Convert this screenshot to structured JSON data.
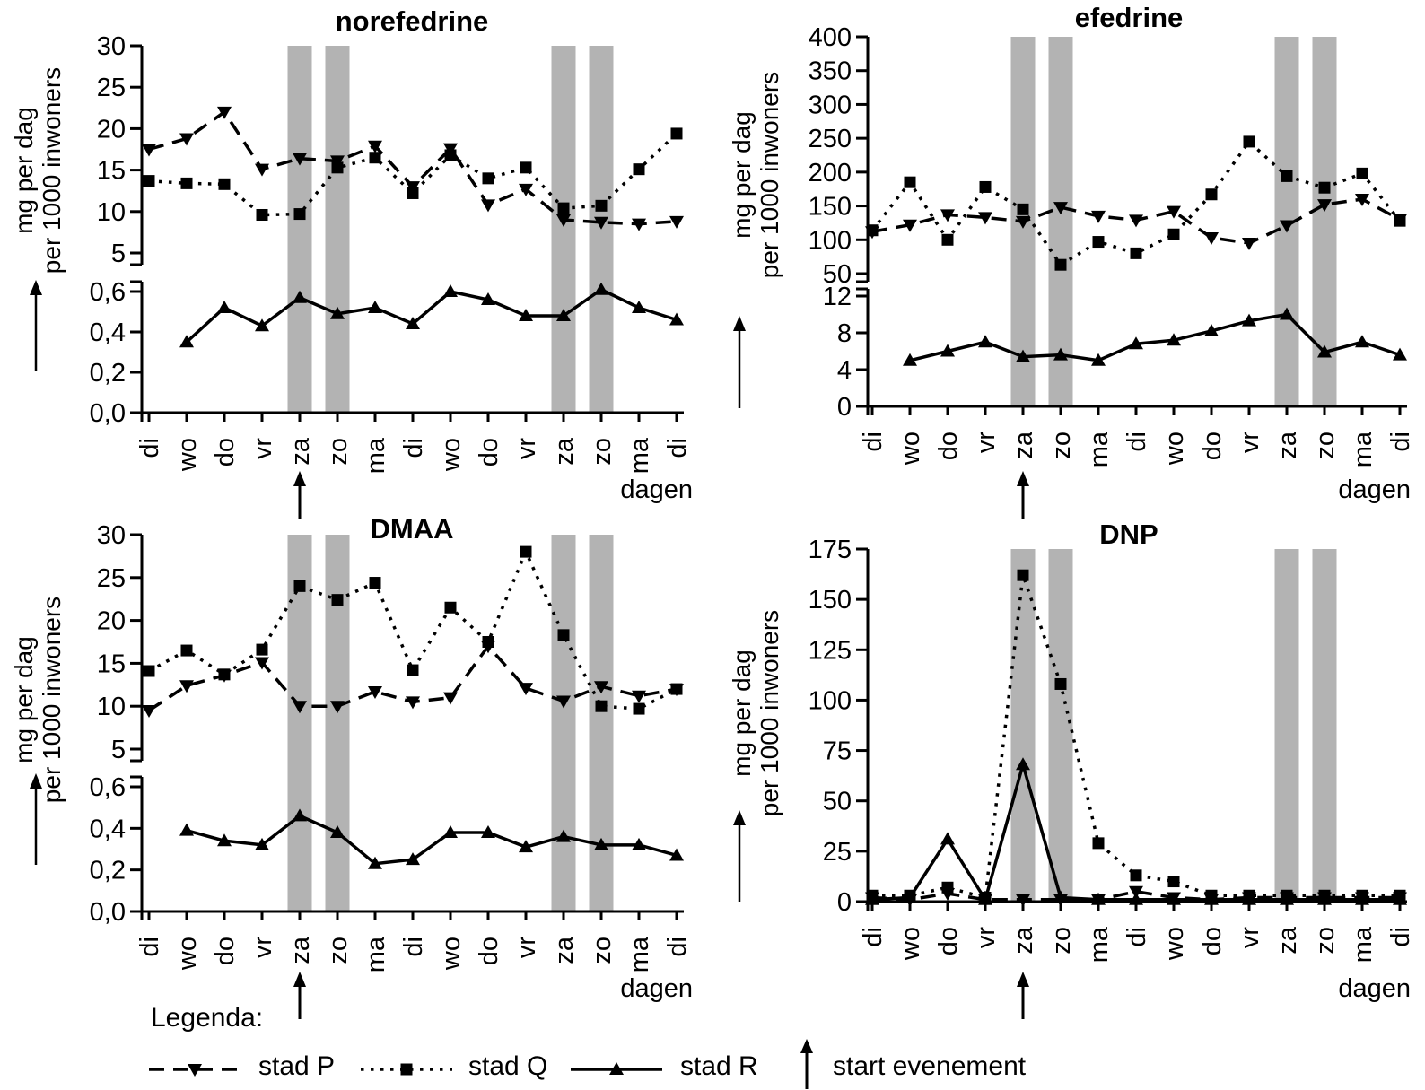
{
  "colors": {
    "series": "#000000",
    "weekend_band": "#b3b3b3",
    "background": "#ffffff"
  },
  "legend": {
    "heading": "Legenda:",
    "items": [
      {
        "label": "stad P",
        "marker": "triangle-down",
        "line_style": "dashed"
      },
      {
        "label": "stad Q",
        "marker": "square",
        "line_style": "dotted"
      },
      {
        "label": "stad R",
        "marker": "triangle-up",
        "line_style": "solid"
      }
    ],
    "event_marker_label": "start evenement"
  },
  "chart_data": [
    {
      "type": "line",
      "title": "norefedrine",
      "xlabel": "dagen",
      "ylabel_lines": [
        "mg per dag",
        "per 1000 inwoners"
      ],
      "x_categories": [
        "di",
        "wo",
        "do",
        "vr",
        "za",
        "zo",
        "ma",
        "di",
        "wo",
        "do",
        "vr",
        "za",
        "zo",
        "ma",
        "di"
      ],
      "weekend_band_indices": [
        4,
        5,
        11,
        12
      ],
      "event_arrow_index": 4,
      "axes": {
        "upper": {
          "range": [
            5,
            30
          ],
          "tick_labels": [
            "5",
            "10",
            "15",
            "20",
            "25",
            "30"
          ]
        },
        "lower": {
          "range": [
            0,
            0.6
          ],
          "tick_labels": [
            "0,0",
            "0,2",
            "0,4",
            "0,6"
          ]
        }
      },
      "series": [
        {
          "name": "stad P",
          "marker": "triangle-down",
          "line_style": "dashed",
          "axis": "upper",
          "values": [
            17.5,
            18.8,
            22,
            15.1,
            16.4,
            16.1,
            17.9,
            13,
            17.6,
            10.8,
            12.7,
            9,
            8.7,
            8.5,
            8.8
          ]
        },
        {
          "name": "stad Q",
          "marker": "square",
          "line_style": "dotted",
          "axis": "upper",
          "values": [
            13.7,
            13.4,
            13.3,
            9.6,
            9.7,
            15.3,
            16.5,
            12.2,
            16.8,
            14,
            15.3,
            10.4,
            10.7,
            15.1,
            19.4
          ]
        },
        {
          "name": "stad R",
          "marker": "triangle-up",
          "line_style": "solid",
          "axis": "lower",
          "values": [
            null,
            0.35,
            0.52,
            0.43,
            0.57,
            0.49,
            0.52,
            0.44,
            0.6,
            0.56,
            0.48,
            0.48,
            0.61,
            0.52,
            0.46
          ]
        }
      ]
    },
    {
      "type": "line",
      "title": "efedrine",
      "xlabel": "dagen",
      "ylabel_lines": [
        "mg per dag",
        "per 1000 inwoners"
      ],
      "x_categories": [
        "di",
        "wo",
        "do",
        "vr",
        "za",
        "zo",
        "ma",
        "di",
        "wo",
        "do",
        "vr",
        "za",
        "zo",
        "ma",
        "di"
      ],
      "weekend_band_indices": [
        4,
        5,
        11,
        12
      ],
      "event_arrow_index": 4,
      "axes": {
        "upper": {
          "range": [
            50,
            400
          ],
          "tick_labels": [
            "50",
            "100",
            "150",
            "200",
            "250",
            "300",
            "350",
            "400"
          ]
        },
        "lower": {
          "range": [
            0,
            12
          ],
          "tick_labels": [
            "0",
            "4",
            "8",
            "12"
          ]
        }
      },
      "series": [
        {
          "name": "stad P",
          "marker": "triangle-down",
          "line_style": "dashed",
          "axis": "upper",
          "values": [
            112,
            122,
            137,
            133,
            127,
            148,
            135,
            129,
            142,
            103,
            95,
            121,
            152,
            160,
            130
          ]
        },
        {
          "name": "stad Q",
          "marker": "square",
          "line_style": "dotted",
          "axis": "upper",
          "values": [
            114,
            185,
            100,
            178,
            145,
            63,
            97,
            80,
            108,
            167,
            245,
            194,
            177,
            198,
            128
          ]
        },
        {
          "name": "stad R",
          "marker": "triangle-up",
          "line_style": "solid",
          "axis": "lower",
          "values": [
            null,
            5,
            6,
            7,
            5.4,
            5.6,
            5,
            6.8,
            7.2,
            8.2,
            9.3,
            10,
            5.9,
            7,
            5.6
          ]
        }
      ]
    },
    {
      "type": "line",
      "title": "DMAA",
      "xlabel": "dagen",
      "ylabel_lines": [
        "mg per dag",
        "per 1000 inwoners"
      ],
      "x_categories": [
        "di",
        "wo",
        "do",
        "vr",
        "za",
        "zo",
        "ma",
        "di",
        "wo",
        "do",
        "vr",
        "za",
        "zo",
        "ma",
        "di"
      ],
      "weekend_band_indices": [
        4,
        5,
        11,
        12
      ],
      "event_arrow_index": 4,
      "axes": {
        "upper": {
          "range": [
            5,
            30
          ],
          "tick_labels": [
            "5",
            "10",
            "15",
            "20",
            "25",
            "30"
          ]
        },
        "lower": {
          "range": [
            0,
            0.6
          ],
          "tick_labels": [
            "0,0",
            "0,2",
            "0,4",
            "0,6"
          ]
        }
      },
      "series": [
        {
          "name": "stad P",
          "marker": "triangle-down",
          "line_style": "dashed",
          "axis": "upper",
          "values": [
            9.5,
            12.4,
            13.6,
            15.1,
            10,
            10,
            11.7,
            10.5,
            11,
            17,
            12.1,
            10.6,
            12.3,
            11.2,
            12
          ]
        },
        {
          "name": "stad Q",
          "marker": "square",
          "line_style": "dotted",
          "axis": "upper",
          "values": [
            14.1,
            16.5,
            13.7,
            16.6,
            24,
            22.4,
            24.4,
            14.2,
            21.5,
            17.5,
            28,
            18.3,
            10,
            9.7,
            12
          ]
        },
        {
          "name": "stad R",
          "marker": "triangle-up",
          "line_style": "solid",
          "axis": "lower",
          "values": [
            null,
            0.39,
            0.34,
            0.32,
            0.46,
            0.38,
            0.23,
            0.25,
            0.38,
            0.38,
            0.31,
            0.36,
            0.32,
            0.32,
            0.27
          ]
        }
      ]
    },
    {
      "type": "line",
      "title": "DNP",
      "xlabel": "dagen",
      "ylabel_lines": [
        "mg per dag",
        "per 1000 inwoners"
      ],
      "x_categories": [
        "di",
        "wo",
        "do",
        "vr",
        "za",
        "zo",
        "ma",
        "di",
        "wo",
        "do",
        "vr",
        "za",
        "zo",
        "ma",
        "di"
      ],
      "weekend_band_indices": [
        4,
        5,
        11,
        12
      ],
      "event_arrow_index": 4,
      "axes": {
        "main": {
          "range": [
            0,
            175
          ],
          "tick_labels": [
            "0",
            "25",
            "50",
            "75",
            "100",
            "125",
            "150",
            "175"
          ]
        }
      },
      "series": [
        {
          "name": "stad P",
          "marker": "triangle-down",
          "line_style": "dashed",
          "axis": "main",
          "values": [
            2,
            1,
            4,
            1,
            1,
            1,
            1,
            5,
            2,
            1,
            2,
            2,
            2,
            2,
            2
          ]
        },
        {
          "name": "stad Q",
          "marker": "square",
          "line_style": "dotted",
          "axis": "main",
          "values": [
            3,
            3,
            7,
            2,
            162,
            108,
            29,
            13,
            10,
            3,
            3,
            3,
            3,
            3,
            3
          ]
        },
        {
          "name": "stad R",
          "marker": "triangle-up",
          "line_style": "solid",
          "axis": "main",
          "values": [
            1,
            2,
            31,
            1,
            68,
            2,
            1,
            1,
            1,
            1,
            1,
            1,
            1,
            1,
            1
          ]
        }
      ]
    }
  ]
}
